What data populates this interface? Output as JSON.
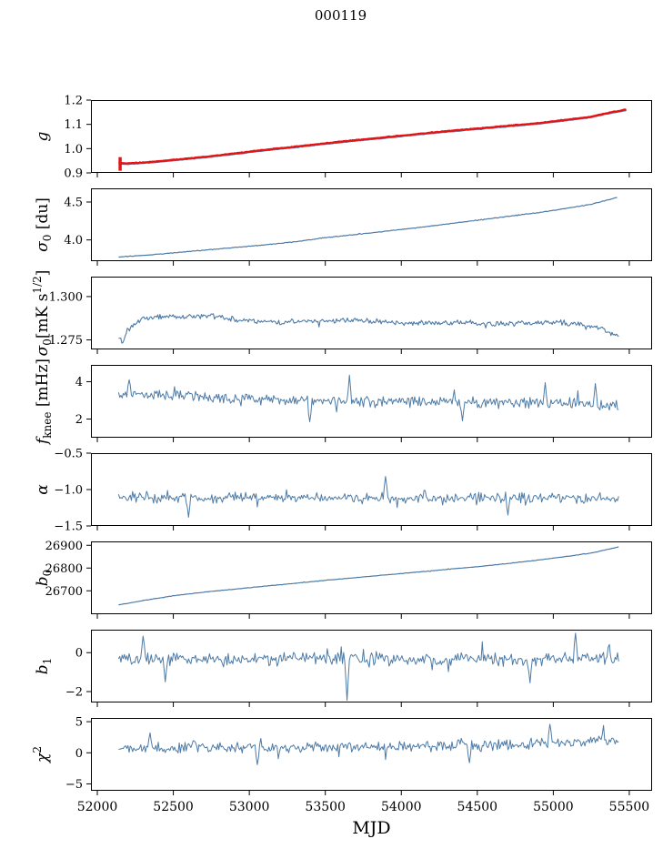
{
  "title": "000119",
  "chart_data": {
    "type": "line",
    "layout": "stacked-subplots-shared-x",
    "title": "000119",
    "xlabel": "MJD",
    "xlim": [
      51958,
      55650
    ],
    "x_ticks": [
      {
        "v": 52000,
        "label": "52000"
      },
      {
        "v": 52500,
        "label": "52500"
      },
      {
        "v": 53000,
        "label": "53000"
      },
      {
        "v": 53500,
        "label": "53500"
      },
      {
        "v": 54000,
        "label": "54000"
      },
      {
        "v": 54500,
        "label": "54500"
      },
      {
        "v": 55000,
        "label": "55000"
      },
      {
        "v": 55500,
        "label": "55500"
      }
    ],
    "colors": {
      "blue": "#4d7ba7",
      "red": "#e81212",
      "frame": "#000000"
    },
    "panels": [
      {
        "name": "g",
        "ylabel": [
          {
            "t": "g",
            "italic": true
          }
        ],
        "ylim": [
          0.9,
          1.2
        ],
        "yticks": [
          {
            "v": 0.9,
            "label": "0.9"
          },
          {
            "v": 1.0,
            "label": "1.0"
          },
          {
            "v": 1.1,
            "label": "1.1"
          },
          {
            "v": 1.2,
            "label": "1.2"
          }
        ],
        "series": [
          {
            "color": "blue",
            "width": 1.2,
            "seed": 11,
            "n": 500,
            "noise": 0.0012,
            "trend": [
              [
                52140,
                0.937
              ],
              [
                52200,
                0.935
              ],
              [
                52350,
                0.941
              ],
              [
                52500,
                0.95
              ],
              [
                52700,
                0.962
              ],
              [
                52900,
                0.976
              ],
              [
                53100,
                0.991
              ],
              [
                53300,
                1.004
              ],
              [
                53500,
                1.018
              ],
              [
                53700,
                1.031
              ],
              [
                53900,
                1.043
              ],
              [
                54100,
                1.056
              ],
              [
                54300,
                1.068
              ],
              [
                54500,
                1.079
              ],
              [
                54700,
                1.09
              ],
              [
                54900,
                1.101
              ],
              [
                55100,
                1.116
              ],
              [
                55250,
                1.128
              ],
              [
                55350,
                1.142
              ],
              [
                55480,
                1.157
              ]
            ]
          },
          {
            "color": "red",
            "width": 2.3,
            "seed": 23,
            "n": 500,
            "noise": 0.0016,
            "offset": 0.004,
            "trend": [
              [
                52140,
                0.937
              ],
              [
                52200,
                0.935
              ],
              [
                52350,
                0.941
              ],
              [
                52500,
                0.95
              ],
              [
                52700,
                0.962
              ],
              [
                52900,
                0.976
              ],
              [
                53100,
                0.991
              ],
              [
                53300,
                1.004
              ],
              [
                53500,
                1.018
              ],
              [
                53700,
                1.031
              ],
              [
                53900,
                1.043
              ],
              [
                54100,
                1.056
              ],
              [
                54300,
                1.068
              ],
              [
                54500,
                1.079
              ],
              [
                54700,
                1.09
              ],
              [
                54900,
                1.101
              ],
              [
                55100,
                1.116
              ],
              [
                55250,
                1.128
              ],
              [
                55350,
                1.142
              ],
              [
                55480,
                1.157
              ]
            ]
          }
        ],
        "errorbar": {
          "x": 52150,
          "y": 0.937,
          "yerr": 0.028,
          "color": "red"
        }
      },
      {
        "name": "sigma0-du",
        "ylabel": [
          {
            "t": "σ",
            "italic": true
          },
          {
            "t": "0",
            "sub": true
          },
          {
            "t": " [du]"
          }
        ],
        "ylim": [
          3.72,
          4.68
        ],
        "yticks": [
          {
            "v": 4.0,
            "label": "4.0"
          },
          {
            "v": 4.5,
            "label": "4.5"
          }
        ],
        "series": [
          {
            "color": "blue",
            "width": 1.2,
            "seed": 31,
            "n": 500,
            "noise": 0.006,
            "trend": [
              [
                52140,
                3.775
              ],
              [
                52300,
                3.795
              ],
              [
                52500,
                3.83
              ],
              [
                52700,
                3.865
              ],
              [
                52900,
                3.9
              ],
              [
                53100,
                3.935
              ],
              [
                53300,
                3.975
              ],
              [
                53500,
                4.03
              ],
              [
                53700,
                4.07
              ],
              [
                53900,
                4.115
              ],
              [
                54100,
                4.16
              ],
              [
                54300,
                4.21
              ],
              [
                54500,
                4.26
              ],
              [
                54700,
                4.31
              ],
              [
                54900,
                4.36
              ],
              [
                55100,
                4.42
              ],
              [
                55250,
                4.47
              ],
              [
                55420,
                4.56
              ]
            ]
          }
        ]
      },
      {
        "name": "sigma0-mks",
        "ylabel": [
          {
            "t": "σ",
            "italic": true
          },
          {
            "t": "0",
            "sub": true
          },
          {
            "t": "[mK s"
          },
          {
            "t": "1/2",
            "sup": true
          },
          {
            "t": "]"
          }
        ],
        "ylim": [
          1.2695,
          1.3115
        ],
        "yticks": [
          {
            "v": 1.275,
            "label": "1.275"
          },
          {
            "v": 1.3,
            "label": "1.300"
          }
        ],
        "series": [
          {
            "color": "blue",
            "width": 1.1,
            "seed": 47,
            "n": 460,
            "noise": 0.0018,
            "trend": [
              [
                52140,
                1.2765
              ],
              [
                52170,
                1.2738
              ],
              [
                52210,
                1.282
              ],
              [
                52300,
                1.2878
              ],
              [
                52450,
                1.2888
              ],
              [
                52600,
                1.2882
              ],
              [
                52750,
                1.2892
              ],
              [
                52900,
                1.2868
              ],
              [
                53050,
                1.2858
              ],
              [
                53200,
                1.2852
              ],
              [
                53350,
                1.2862
              ],
              [
                53500,
                1.2858
              ],
              [
                53700,
                1.2867
              ],
              [
                53900,
                1.2852
              ],
              [
                54100,
                1.2846
              ],
              [
                54300,
                1.2852
              ],
              [
                54500,
                1.2846
              ],
              [
                54700,
                1.2842
              ],
              [
                54900,
                1.2847
              ],
              [
                55050,
                1.2852
              ],
              [
                55200,
                1.2832
              ],
              [
                55320,
                1.2815
              ],
              [
                55430,
                1.2762
              ]
            ]
          }
        ]
      },
      {
        "name": "fknee",
        "ylabel": [
          {
            "t": "f",
            "italic": true
          },
          {
            "t": "knee",
            "sub": true
          },
          {
            "t": " [mHz]"
          }
        ],
        "ylim": [
          1.0,
          4.9
        ],
        "yticks": [
          {
            "v": 2,
            "label": "2"
          },
          {
            "v": 4,
            "label": "4"
          }
        ],
        "series": [
          {
            "color": "blue",
            "width": 1.0,
            "seed": 59,
            "n": 430,
            "noise": 0.36,
            "trend": [
              [
                52140,
                3.42
              ],
              [
                52400,
                3.33
              ],
              [
                52800,
                3.15
              ],
              [
                53200,
                3.02
              ],
              [
                53700,
                2.95
              ],
              [
                54200,
                2.92
              ],
              [
                54700,
                2.86
              ],
              [
                55100,
                2.82
              ],
              [
                55430,
                2.72
              ]
            ],
            "spikes": [
              [
                53660,
                4.35
              ],
              [
                52210,
                4.1
              ],
              [
                54950,
                3.95
              ],
              [
                55280,
                3.9
              ],
              [
                53400,
                1.85
              ],
              [
                54400,
                1.9
              ]
            ]
          }
        ]
      },
      {
        "name": "alpha",
        "ylabel": [
          {
            "t": "α",
            "italic": true
          }
        ],
        "ylim": [
          -1.5,
          -0.5
        ],
        "yticks": [
          {
            "v": -0.5,
            "label": "−0.5"
          },
          {
            "v": -1.0,
            "label": "−1.0"
          },
          {
            "v": -1.5,
            "label": "−1.5"
          }
        ],
        "series": [
          {
            "color": "blue",
            "width": 1.0,
            "seed": 67,
            "n": 430,
            "noise": 0.085,
            "trend": [
              [
                52140,
                -1.1
              ],
              [
                52800,
                -1.12
              ],
              [
                53500,
                -1.11
              ],
              [
                54200,
                -1.12
              ],
              [
                54900,
                -1.11
              ],
              [
                55430,
                -1.12
              ]
            ],
            "spikes": [
              [
                52600,
                -1.38
              ],
              [
                53900,
                -0.82
              ],
              [
                54700,
                -1.35
              ]
            ]
          }
        ]
      },
      {
        "name": "b0",
        "ylabel": [
          {
            "t": "b",
            "italic": true
          },
          {
            "t": "0",
            "sub": true
          }
        ],
        "ylim": [
          26597,
          26917
        ],
        "yticks": [
          {
            "v": 26700,
            "label": "26700"
          },
          {
            "v": 26800,
            "label": "26800"
          },
          {
            "v": 26900,
            "label": "26900"
          }
        ],
        "series": [
          {
            "color": "blue",
            "width": 1.2,
            "seed": 71,
            "n": 500,
            "noise": 1.2,
            "trend": [
              [
                52140,
                26638
              ],
              [
                52300,
                26657
              ],
              [
                52500,
                26678
              ],
              [
                52700,
                26694
              ],
              [
                52900,
                26707
              ],
              [
                53100,
                26720
              ],
              [
                53300,
                26733
              ],
              [
                53500,
                26746
              ],
              [
                53700,
                26758
              ],
              [
                53900,
                26770
              ],
              [
                54100,
                26782
              ],
              [
                54300,
                26794
              ],
              [
                54500,
                26806
              ],
              [
                54700,
                26820
              ],
              [
                54900,
                26835
              ],
              [
                55100,
                26852
              ],
              [
                55250,
                26866
              ],
              [
                55430,
                26893
              ]
            ]
          }
        ]
      },
      {
        "name": "b1",
        "ylabel": [
          {
            "t": "b",
            "italic": true
          },
          {
            "t": "1",
            "sub": true
          }
        ],
        "ylim": [
          -2.56,
          1.18
        ],
        "yticks": [
          {
            "v": 0,
            "label": "0"
          },
          {
            "v": -2,
            "label": "−2"
          }
        ],
        "series": [
          {
            "color": "blue",
            "width": 1.0,
            "seed": 83,
            "n": 430,
            "noise": 0.42,
            "trend": [
              [
                52140,
                -0.3
              ],
              [
                53000,
                -0.35
              ],
              [
                54000,
                -0.3
              ],
              [
                55000,
                -0.32
              ],
              [
                55430,
                -0.28
              ]
            ],
            "spikes": [
              [
                53640,
                -2.45
              ],
              [
                52450,
                -1.5
              ],
              [
                54850,
                -1.55
              ],
              [
                55150,
                1.0
              ],
              [
                52300,
                0.85
              ]
            ]
          }
        ]
      },
      {
        "name": "chi2",
        "ylabel": [
          {
            "t": "χ",
            "italic": true
          },
          {
            "t": "2",
            "sup": true
          }
        ],
        "ylim": [
          -6.1,
          5.6
        ],
        "yticks": [
          {
            "v": -5,
            "label": "−5"
          },
          {
            "v": 0,
            "label": "0"
          },
          {
            "v": 5,
            "label": "5"
          }
        ],
        "series": [
          {
            "color": "blue",
            "width": 1.0,
            "seed": 97,
            "n": 430,
            "noise": 1.05,
            "trend": [
              [
                52140,
                0.75
              ],
              [
                52800,
                0.78
              ],
              [
                53500,
                0.95
              ],
              [
                54200,
                1.1
              ],
              [
                54800,
                1.35
              ],
              [
                55200,
                1.8
              ],
              [
                55430,
                1.9
              ]
            ],
            "spikes": [
              [
                54980,
                4.6
              ],
              [
                55330,
                4.4
              ],
              [
                53050,
                -1.9
              ],
              [
                54450,
                -1.6
              ],
              [
                52350,
                3.2
              ]
            ]
          }
        ]
      }
    ]
  }
}
